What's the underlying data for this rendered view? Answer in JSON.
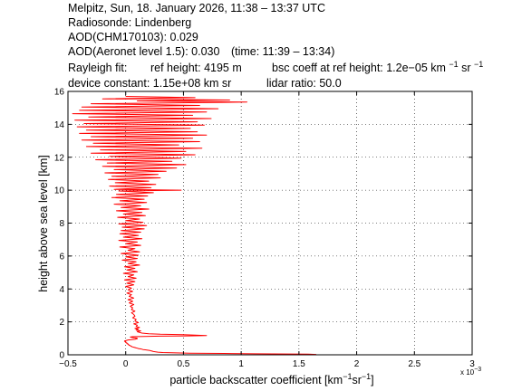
{
  "header": {
    "line1": "Melpitz, Sun, 18. January 2026, 11:38 – 13:37 UTC",
    "line2": "Radiosonde: Lindenberg",
    "line3": "AOD(CHM170103): 0.029",
    "line4_main": "AOD(Aeronet level 1.5): 0.030",
    "line4_time": "(time: 11:39 – 13:34)",
    "rayleigh_label": "Rayleigh fit:",
    "ref_height": "ref height: 4195 m",
    "bsc_prefix": "bsc coeff at ref height: 1.2e−05 km",
    "bsc_exp1": "−1",
    "bsc_mid": "sr",
    "bsc_exp2": "−1",
    "device_constant": "device constant: 1.15e+08 km sr",
    "lidar_ratio": "lidar ratio: 50.0"
  },
  "chart_data": {
    "type": "line",
    "title": "",
    "ylabel": "height above sea level [km]",
    "xlabel_prefix": "particle backscatter coefficient [km",
    "xlabel_exp1": "−1",
    "xlabel_mid": "sr",
    "xlabel_exp2": "−1",
    "xlabel_suffix": "]",
    "x_multiplier": "x 10",
    "x_multiplier_exp": "−3",
    "xlim": [
      -0.5,
      3.0
    ],
    "ylim": [
      0,
      16
    ],
    "xticks": [
      -0.5,
      0,
      0.5,
      1,
      1.5,
      2,
      2.5,
      3
    ],
    "xtick_labels": [
      "−0.5",
      "0",
      "0.5",
      "1",
      "1.5",
      "2",
      "2.5",
      "3"
    ],
    "yticks": [
      0,
      2,
      4,
      6,
      8,
      10,
      12,
      14,
      16
    ],
    "ytick_labels": [
      "0",
      "2",
      "4",
      "6",
      "8",
      "10",
      "12",
      "14",
      "16"
    ],
    "grid": true,
    "series": [
      {
        "color": "#ff0000",
        "points": [
          [
            1.65,
            0.02
          ],
          [
            1.58,
            0.04
          ],
          [
            1.12,
            0.06
          ],
          [
            0.85,
            0.08
          ],
          [
            0.55,
            0.1
          ],
          [
            0.4,
            0.12
          ],
          [
            0.32,
            0.14
          ],
          [
            0.28,
            0.16
          ],
          [
            0.26,
            0.18
          ],
          [
            0.24,
            0.2
          ],
          [
            0.23,
            0.22
          ],
          [
            0.22,
            0.24
          ],
          [
            0.21,
            0.26
          ],
          [
            0.19,
            0.28
          ],
          [
            0.17,
            0.3
          ],
          [
            0.15,
            0.32
          ],
          [
            0.14,
            0.34
          ],
          [
            0.13,
            0.36
          ],
          [
            0.11,
            0.38
          ],
          [
            0.1,
            0.4
          ],
          [
            0.09,
            0.42
          ],
          [
            0.08,
            0.44
          ],
          [
            0.07,
            0.46
          ],
          [
            0.06,
            0.48
          ],
          [
            0.05,
            0.5
          ],
          [
            0.05,
            0.52
          ],
          [
            0.04,
            0.54
          ],
          [
            0.04,
            0.56
          ],
          [
            0.03,
            0.58
          ],
          [
            0.03,
            0.6
          ],
          [
            0.02,
            0.62
          ],
          [
            0.02,
            0.64
          ],
          [
            0.02,
            0.66
          ],
          [
            0.01,
            0.68
          ],
          [
            0.01,
            0.7
          ],
          [
            0.01,
            0.72
          ],
          [
            0.0,
            0.74
          ],
          [
            0.0,
            0.76
          ],
          [
            0.0,
            0.78
          ],
          [
            0.0,
            0.8
          ],
          [
            -0.01,
            0.82
          ],
          [
            -0.01,
            0.84
          ],
          [
            0.0,
            0.86
          ],
          [
            0.01,
            0.88
          ],
          [
            0.02,
            0.9
          ],
          [
            0.05,
            0.92
          ],
          [
            0.08,
            0.94
          ],
          [
            0.09,
            0.96
          ],
          [
            0.1,
            0.98
          ],
          [
            0.1,
            1.0
          ],
          [
            0.09,
            1.02
          ],
          [
            0.07,
            1.04
          ],
          [
            0.05,
            1.06
          ],
          [
            0.04,
            1.08
          ],
          [
            0.06,
            1.1
          ],
          [
            0.3,
            1.13
          ],
          [
            0.55,
            1.15
          ],
          [
            0.7,
            1.17
          ],
          [
            0.6,
            1.2
          ],
          [
            0.5,
            1.22
          ],
          [
            0.3,
            1.25
          ],
          [
            0.2,
            1.28
          ],
          [
            0.14,
            1.32
          ],
          [
            0.12,
            1.36
          ],
          [
            0.1,
            1.4
          ],
          [
            0.13,
            1.45
          ],
          [
            0.09,
            1.5
          ],
          [
            0.11,
            1.55
          ],
          [
            0.08,
            1.6
          ],
          [
            0.12,
            1.66
          ],
          [
            0.09,
            1.72
          ],
          [
            0.1,
            1.8
          ],
          [
            0.07,
            1.88
          ],
          [
            0.11,
            1.96
          ],
          [
            0.08,
            2.05
          ],
          [
            0.09,
            2.15
          ],
          [
            0.06,
            2.25
          ],
          [
            0.08,
            2.35
          ],
          [
            0.07,
            2.45
          ],
          [
            0.05,
            2.55
          ],
          [
            0.08,
            2.65
          ],
          [
            0.05,
            2.75
          ],
          [
            0.06,
            2.85
          ],
          [
            0.04,
            2.95
          ],
          [
            0.07,
            3.05
          ],
          [
            0.03,
            3.15
          ],
          [
            0.06,
            3.25
          ],
          [
            0.02,
            3.35
          ],
          [
            0.07,
            3.45
          ],
          [
            0.03,
            3.55
          ],
          [
            0.05,
            3.65
          ],
          [
            0.01,
            3.75
          ],
          [
            0.06,
            3.85
          ],
          [
            0.02,
            3.95
          ],
          [
            0.05,
            4.05
          ],
          [
            0.0,
            4.15
          ],
          [
            0.07,
            4.25
          ],
          [
            0.01,
            4.35
          ],
          [
            0.08,
            4.45
          ],
          [
            -0.01,
            4.55
          ],
          [
            0.09,
            4.65
          ],
          [
            0.02,
            4.75
          ],
          [
            0.07,
            4.85
          ],
          [
            -0.02,
            4.95
          ],
          [
            0.1,
            5.05
          ],
          [
            0.01,
            5.15
          ],
          [
            0.08,
            5.25
          ],
          [
            -0.01,
            5.35
          ],
          [
            0.12,
            5.45
          ],
          [
            0.02,
            5.55
          ],
          [
            0.09,
            5.65
          ],
          [
            -0.03,
            5.75
          ],
          [
            0.1,
            5.85
          ],
          [
            0.0,
            5.95
          ],
          [
            0.11,
            6.05
          ],
          [
            -0.04,
            6.15
          ],
          [
            0.12,
            6.25
          ],
          [
            0.02,
            6.35
          ],
          [
            0.08,
            6.45
          ],
          [
            -0.05,
            6.55
          ],
          [
            0.13,
            6.65
          ],
          [
            0.0,
            6.75
          ],
          [
            0.1,
            6.85
          ],
          [
            -0.06,
            6.95
          ],
          [
            0.14,
            7.05
          ],
          [
            -0.02,
            7.15
          ],
          [
            0.11,
            7.25
          ],
          [
            -0.05,
            7.35
          ],
          [
            0.13,
            7.45
          ],
          [
            -0.04,
            7.55
          ],
          [
            0.16,
            7.65
          ],
          [
            -0.03,
            7.75
          ],
          [
            0.18,
            7.85
          ],
          [
            -0.06,
            7.95
          ],
          [
            0.15,
            8.05
          ],
          [
            0.0,
            8.15
          ],
          [
            0.12,
            8.25
          ],
          [
            -0.07,
            8.35
          ],
          [
            0.17,
            8.45
          ],
          [
            -0.02,
            8.55
          ],
          [
            0.14,
            8.65
          ],
          [
            -0.08,
            8.75
          ],
          [
            0.2,
            8.85
          ],
          [
            -0.04,
            8.95
          ],
          [
            0.13,
            9.05
          ],
          [
            -0.1,
            9.15
          ],
          [
            0.18,
            9.25
          ],
          [
            -0.05,
            9.35
          ],
          [
            0.16,
            9.45
          ],
          [
            -0.12,
            9.55
          ],
          [
            0.19,
            9.65
          ],
          [
            -0.08,
            9.75
          ],
          [
            0.24,
            9.85
          ],
          [
            -0.06,
            9.95
          ],
          [
            0.48,
            10.0
          ],
          [
            -0.1,
            10.05
          ],
          [
            0.22,
            10.15
          ],
          [
            -0.14,
            10.25
          ],
          [
            0.26,
            10.35
          ],
          [
            -0.09,
            10.45
          ],
          [
            0.2,
            10.55
          ],
          [
            -0.15,
            10.65
          ],
          [
            0.3,
            10.75
          ],
          [
            -0.12,
            10.85
          ],
          [
            0.28,
            10.95
          ],
          [
            -0.18,
            11.05
          ],
          [
            0.35,
            11.15
          ],
          [
            -0.1,
            11.25
          ],
          [
            0.44,
            11.35
          ],
          [
            -0.2,
            11.45
          ],
          [
            0.52,
            11.55
          ],
          [
            -0.16,
            11.65
          ],
          [
            0.4,
            11.75
          ],
          [
            -0.26,
            11.85
          ],
          [
            0.48,
            11.95
          ],
          [
            -0.14,
            12.05
          ],
          [
            0.6,
            12.15
          ],
          [
            -0.3,
            12.25
          ],
          [
            0.52,
            12.35
          ],
          [
            -0.22,
            12.45
          ],
          [
            0.66,
            12.55
          ],
          [
            -0.34,
            12.65
          ],
          [
            0.46,
            12.75
          ],
          [
            -0.28,
            12.85
          ],
          [
            0.64,
            12.95
          ],
          [
            -0.38,
            13.05
          ],
          [
            0.58,
            13.15
          ],
          [
            -0.3,
            13.25
          ],
          [
            0.7,
            13.35
          ],
          [
            -0.4,
            13.45
          ],
          [
            0.62,
            13.55
          ],
          [
            -0.34,
            13.65
          ],
          [
            0.56,
            13.75
          ],
          [
            -0.42,
            13.85
          ],
          [
            0.68,
            13.95
          ],
          [
            -0.36,
            14.05
          ],
          [
            0.62,
            14.15
          ],
          [
            -0.44,
            14.25
          ],
          [
            0.74,
            14.35
          ],
          [
            -0.32,
            14.45
          ],
          [
            0.58,
            14.55
          ],
          [
            -0.46,
            14.65
          ],
          [
            0.7,
            14.75
          ],
          [
            -0.4,
            14.85
          ],
          [
            0.8,
            14.95
          ],
          [
            -0.38,
            15.05
          ],
          [
            0.64,
            15.15
          ],
          [
            -0.3,
            15.25
          ],
          [
            1.05,
            15.35
          ],
          [
            0.1,
            15.42
          ],
          [
            0.9,
            15.48
          ],
          [
            -0.2,
            15.55
          ],
          [
            0.6,
            15.62
          ],
          [
            0.0,
            15.7
          ]
        ]
      }
    ]
  }
}
